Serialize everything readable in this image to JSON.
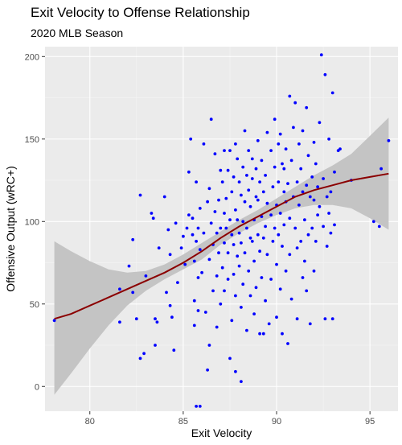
{
  "chart_data": {
    "type": "scatter",
    "title": "Exit Velocity to Offense Relationship",
    "subtitle": "2020 MLB Season",
    "xlabel": "Exit Velocity",
    "ylabel": "Offensive Output (wRC+)",
    "xlim": [
      77.6,
      96.5
    ],
    "ylim": [
      -15,
      206
    ],
    "x_ticks": [
      80,
      85,
      90,
      95
    ],
    "y_ticks": [
      0,
      50,
      100,
      150,
      200
    ],
    "x_tick_labels": [
      "80",
      "85",
      "90",
      "95"
    ],
    "y_tick_labels": [
      "0",
      "50",
      "100",
      "150",
      "200"
    ],
    "grid": true,
    "point_color": "#0000ff",
    "smooth_color": "#8b0000",
    "band_color": "#c4c4c4",
    "panel_color": "#ebebeb",
    "points": [
      [
        78.1,
        40
      ],
      [
        81.6,
        39
      ],
      [
        81.6,
        59
      ],
      [
        82.1,
        73
      ],
      [
        82.3,
        89
      ],
      [
        82.3,
        57
      ],
      [
        82.5,
        41
      ],
      [
        82.7,
        116
      ],
      [
        82.7,
        17
      ],
      [
        82.9,
        20
      ],
      [
        83.0,
        67
      ],
      [
        83.3,
        105
      ],
      [
        83.4,
        102
      ],
      [
        83.5,
        41
      ],
      [
        83.5,
        25
      ],
      [
        83.6,
        39
      ],
      [
        83.7,
        84
      ],
      [
        84.0,
        115
      ],
      [
        84.1,
        57
      ],
      [
        84.2,
        95
      ],
      [
        84.3,
        80
      ],
      [
        84.3,
        49
      ],
      [
        84.4,
        42
      ],
      [
        84.5,
        22
      ],
      [
        84.6,
        99
      ],
      [
        84.7,
        63
      ],
      [
        84.9,
        84
      ],
      [
        85.0,
        91
      ],
      [
        85.1,
        74
      ],
      [
        85.2,
        96
      ],
      [
        85.3,
        104
      ],
      [
        85.3,
        130
      ],
      [
        85.4,
        150
      ],
      [
        85.5,
        102
      ],
      [
        85.5,
        92
      ],
      [
        85.6,
        76
      ],
      [
        85.6,
        52
      ],
      [
        85.6,
        37
      ],
      [
        85.7,
        124
      ],
      [
        85.7,
        88
      ],
      [
        85.7,
        -12
      ],
      [
        85.8,
        96
      ],
      [
        85.8,
        66
      ],
      [
        85.8,
        46
      ],
      [
        85.9,
        108
      ],
      [
        85.9,
        83
      ],
      [
        85.9,
        -12
      ],
      [
        86.0,
        69
      ],
      [
        86.1,
        147
      ],
      [
        86.1,
        93
      ],
      [
        86.2,
        45
      ],
      [
        86.3,
        10
      ],
      [
        86.3,
        112
      ],
      [
        86.4,
        120
      ],
      [
        86.4,
        77
      ],
      [
        86.4,
        25
      ],
      [
        86.5,
        162
      ],
      [
        86.5,
        99
      ],
      [
        86.6,
        58
      ],
      [
        86.6,
        86
      ],
      [
        86.7,
        141
      ],
      [
        86.7,
        106
      ],
      [
        86.8,
        93
      ],
      [
        86.8,
        67
      ],
      [
        86.8,
        36
      ],
      [
        86.9,
        113
      ],
      [
        86.9,
        81
      ],
      [
        87.0,
        131
      ],
      [
        87.0,
        96
      ],
      [
        87.0,
        50
      ],
      [
        87.1,
        124
      ],
      [
        87.1,
        72
      ],
      [
        87.2,
        143
      ],
      [
        87.2,
        105
      ],
      [
        87.2,
        87
      ],
      [
        87.2,
        58
      ],
      [
        87.3,
        114
      ],
      [
        87.3,
        96
      ],
      [
        87.4,
        131
      ],
      [
        87.4,
        81
      ],
      [
        87.4,
        65
      ],
      [
        87.5,
        143
      ],
      [
        87.5,
        101
      ],
      [
        87.5,
        17
      ],
      [
        87.6,
        118
      ],
      [
        87.6,
        92
      ],
      [
        87.6,
        40
      ],
      [
        87.7,
        127
      ],
      [
        87.7,
        86
      ],
      [
        87.7,
        68
      ],
      [
        87.8,
        147
      ],
      [
        87.8,
        107
      ],
      [
        87.8,
        55
      ],
      [
        87.8,
        9
      ],
      [
        87.9,
        138
      ],
      [
        87.9,
        79
      ],
      [
        87.9,
        101
      ],
      [
        88.0,
        124
      ],
      [
        88.0,
        93
      ],
      [
        88.0,
        73
      ],
      [
        88.1,
        116
      ],
      [
        88.1,
        87
      ],
      [
        88.1,
        3
      ],
      [
        88.1,
        48
      ],
      [
        88.2,
        133
      ],
      [
        88.2,
        100
      ],
      [
        88.2,
        62
      ],
      [
        88.3,
        155
      ],
      [
        88.3,
        112
      ],
      [
        88.3,
        81
      ],
      [
        88.4,
        128
      ],
      [
        88.4,
        96
      ],
      [
        88.4,
        34
      ],
      [
        88.5,
        143
      ],
      [
        88.5,
        119
      ],
      [
        88.5,
        70
      ],
      [
        88.6,
        90
      ],
      [
        88.6,
        109
      ],
      [
        88.6,
        55
      ],
      [
        88.7,
        138
      ],
      [
        88.7,
        126
      ],
      [
        88.7,
        88
      ],
      [
        88.8,
        101
      ],
      [
        88.8,
        76
      ],
      [
        88.8,
        44
      ],
      [
        88.9,
        115
      ],
      [
        88.9,
        132
      ],
      [
        88.9,
        60
      ],
      [
        89.0,
        149
      ],
      [
        89.0,
        92
      ],
      [
        89.0,
        113
      ],
      [
        89.1,
        124
      ],
      [
        89.1,
        82
      ],
      [
        89.1,
        32
      ],
      [
        89.2,
        103
      ],
      [
        89.2,
        137
      ],
      [
        89.2,
        66
      ],
      [
        89.3,
        118
      ],
      [
        89.3,
        90
      ],
      [
        89.3,
        32
      ],
      [
        89.4,
        128
      ],
      [
        89.4,
        97
      ],
      [
        89.4,
        52
      ],
      [
        89.5,
        154
      ],
      [
        89.5,
        111
      ],
      [
        89.5,
        80
      ],
      [
        89.6,
        38
      ],
      [
        89.7,
        143
      ],
      [
        89.7,
        104
      ],
      [
        89.7,
        65
      ],
      [
        89.8,
        121
      ],
      [
        89.8,
        88
      ],
      [
        89.9,
        162
      ],
      [
        89.9,
        133
      ],
      [
        89.9,
        96
      ],
      [
        90.0,
        110
      ],
      [
        90.0,
        74
      ],
      [
        90.0,
        42
      ],
      [
        90.1,
        147
      ],
      [
        90.1,
        124
      ],
      [
        90.1,
        92
      ],
      [
        90.2,
        153
      ],
      [
        90.2,
        105
      ],
      [
        90.2,
        59
      ],
      [
        90.3,
        135
      ],
      [
        90.3,
        85
      ],
      [
        90.3,
        32
      ],
      [
        90.4,
        118
      ],
      [
        90.4,
        98
      ],
      [
        90.4,
        132
      ],
      [
        90.5,
        144
      ],
      [
        90.5,
        112
      ],
      [
        90.5,
        70
      ],
      [
        90.6,
        123
      ],
      [
        90.6,
        26
      ],
      [
        90.7,
        176
      ],
      [
        90.7,
        102
      ],
      [
        90.7,
        80
      ],
      [
        90.8,
        137
      ],
      [
        90.8,
        53
      ],
      [
        90.9,
        157
      ],
      [
        90.9,
        115
      ],
      [
        91.0,
        172
      ],
      [
        91.0,
        96
      ],
      [
        91.1,
        124
      ],
      [
        91.1,
        84
      ],
      [
        91.1,
        41
      ],
      [
        91.2,
        147
      ],
      [
        91.2,
        110
      ],
      [
        91.3,
        132
      ],
      [
        91.3,
        88
      ],
      [
        91.4,
        155
      ],
      [
        91.4,
        118
      ],
      [
        91.4,
        66
      ],
      [
        91.5,
        101
      ],
      [
        91.5,
        76
      ],
      [
        91.6,
        169
      ],
      [
        91.6,
        122
      ],
      [
        91.6,
        58
      ],
      [
        91.7,
        140
      ],
      [
        91.7,
        92
      ],
      [
        91.8,
        115
      ],
      [
        91.8,
        38
      ],
      [
        91.9,
        127
      ],
      [
        91.9,
        96
      ],
      [
        92.0,
        148
      ],
      [
        92.0,
        113
      ],
      [
        92.0,
        70
      ],
      [
        92.1,
        135
      ],
      [
        92.1,
        88
      ],
      [
        92.2,
        121
      ],
      [
        92.2,
        104
      ],
      [
        92.3,
        160
      ],
      [
        92.3,
        109
      ],
      [
        92.4,
        201
      ],
      [
        92.5,
        126
      ],
      [
        92.5,
        97
      ],
      [
        92.6,
        189
      ],
      [
        92.6,
        41
      ],
      [
        92.7,
        115
      ],
      [
        92.7,
        85
      ],
      [
        92.8,
        105
      ],
      [
        92.8,
        150
      ],
      [
        92.9,
        118
      ],
      [
        92.9,
        93
      ],
      [
        93.0,
        178
      ],
      [
        93.0,
        41
      ],
      [
        93.1,
        130
      ],
      [
        93.1,
        98
      ],
      [
        93.3,
        143
      ],
      [
        93.4,
        144
      ],
      [
        94.0,
        125
      ],
      [
        95.2,
        100
      ],
      [
        95.5,
        97
      ],
      [
        95.6,
        132
      ],
      [
        96.0,
        149
      ]
    ],
    "smooth_line": [
      [
        78.1,
        41
      ],
      [
        79.0,
        44
      ],
      [
        80.0,
        49
      ],
      [
        81.0,
        54
      ],
      [
        82.0,
        59
      ],
      [
        83.0,
        64
      ],
      [
        84.0,
        69
      ],
      [
        85.0,
        75
      ],
      [
        86.0,
        82
      ],
      [
        87.0,
        90
      ],
      [
        88.0,
        97
      ],
      [
        89.0,
        103
      ],
      [
        90.0,
        109
      ],
      [
        91.0,
        115
      ],
      [
        92.0,
        119
      ],
      [
        93.0,
        122
      ],
      [
        94.0,
        125
      ],
      [
        95.0,
        127
      ],
      [
        96.0,
        129
      ]
    ],
    "band_upper": [
      [
        78.1,
        88
      ],
      [
        79.0,
        82
      ],
      [
        80.0,
        76
      ],
      [
        81.0,
        71
      ],
      [
        82.0,
        69
      ],
      [
        83.0,
        70
      ],
      [
        84.0,
        74
      ],
      [
        85.0,
        80
      ],
      [
        86.0,
        87
      ],
      [
        87.0,
        94
      ],
      [
        88.0,
        101
      ],
      [
        89.0,
        107
      ],
      [
        90.0,
        114
      ],
      [
        91.0,
        121
      ],
      [
        92.0,
        128
      ],
      [
        93.0,
        134
      ],
      [
        94.0,
        141
      ],
      [
        95.0,
        152
      ],
      [
        96.0,
        163
      ]
    ],
    "band_lower": [
      [
        78.1,
        -5
      ],
      [
        79.0,
        8
      ],
      [
        80.0,
        23
      ],
      [
        81.0,
        37
      ],
      [
        82.0,
        49
      ],
      [
        83.0,
        58
      ],
      [
        84.0,
        65
      ],
      [
        85.0,
        71
      ],
      [
        86.0,
        77
      ],
      [
        87.0,
        86
      ],
      [
        88.0,
        93
      ],
      [
        89.0,
        99
      ],
      [
        90.0,
        104
      ],
      [
        91.0,
        108
      ],
      [
        92.0,
        110
      ],
      [
        93.0,
        110
      ],
      [
        94.0,
        108
      ],
      [
        95.0,
        102
      ],
      [
        96.0,
        95
      ]
    ]
  }
}
